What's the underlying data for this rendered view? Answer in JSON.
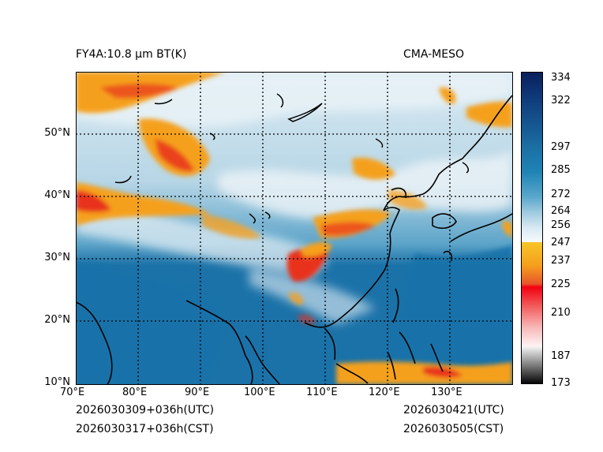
{
  "header": {
    "left_title": "FY4A:10.8 µm BT(K)",
    "right_title": "CMA-MESO"
  },
  "footer": {
    "init_utc": "2026030309+036h(UTC)",
    "init_cst": "2026030317+036h(CST)",
    "valid_utc": "2026030421(UTC)",
    "valid_cst": "2026030505(CST)"
  },
  "map": {
    "variable": "10.8 µm brightness temperature",
    "lon_ticks": [
      "70°E",
      "80°E",
      "90°E",
      "100°E",
      "110°E",
      "120°E",
      "130°E"
    ],
    "lat_ticks": [
      "10°N",
      "20°N",
      "30°N",
      "40°N",
      "50°N"
    ],
    "lon_range": [
      70,
      140
    ],
    "lat_range": [
      10,
      60
    ]
  },
  "colorbar": {
    "unit": "K",
    "labels": [
      "334",
      "322",
      "297",
      "285",
      "272",
      "264",
      "256",
      "247",
      "237",
      "225",
      "210",
      "187",
      "173"
    ],
    "min": 173,
    "max": 334
  },
  "colors": {
    "ocean": "#1b72a8",
    "land_warm": "#9cc8de",
    "cloud_cold": "#eef4f8",
    "cloud_orange": "#f5a01e",
    "cloud_red": "#e8331c",
    "gridline": "#000000"
  }
}
